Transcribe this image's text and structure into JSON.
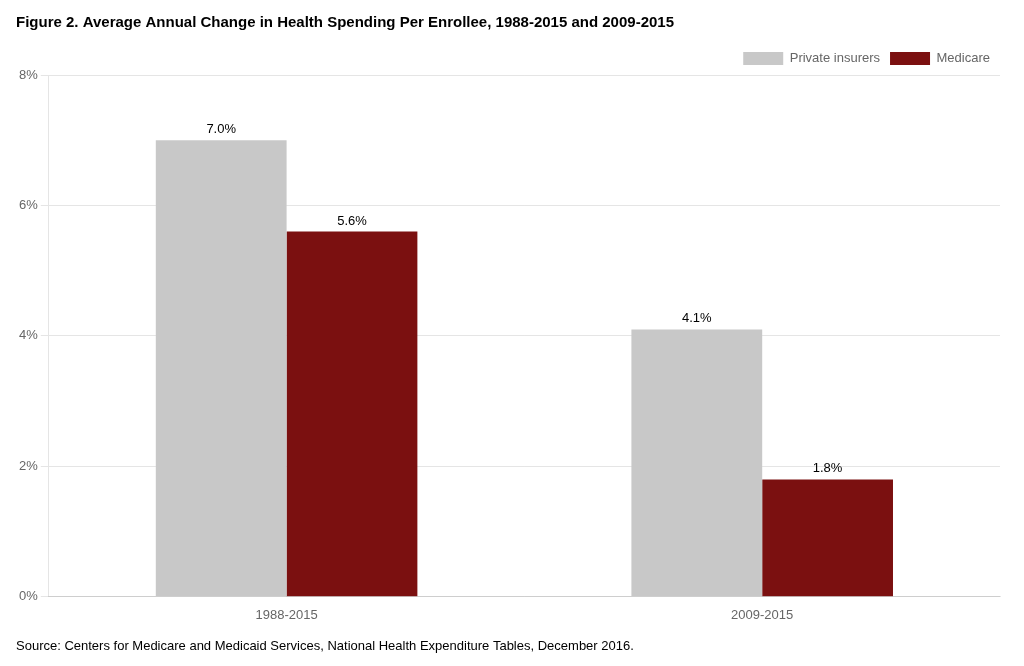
{
  "chart_data": {
    "type": "bar",
    "title": "Figure 2. Average Annual Change in Health Spending Per Enrollee, 1988-2015 and 2009-2015",
    "annotations": [
      "Source: Centers for Medicare and Medicaid Services, National Health Expenditure Tables, December 2016."
    ],
    "categories": [
      "1988-2015",
      "2009-2015"
    ],
    "series": [
      {
        "name": "Private insurers",
        "color": "#c8c8c8",
        "values": [
          7.0,
          4.1
        ],
        "value_labels": [
          "7.0%",
          "4.1%"
        ]
      },
      {
        "name": "Medicare",
        "color": "#7b1010",
        "values": [
          5.6,
          1.8
        ],
        "value_labels": [
          "5.6%",
          "1.8%"
        ]
      }
    ],
    "ylim": [
      0,
      8
    ],
    "yticks": [
      {
        "value": 0,
        "label": "0%"
      },
      {
        "value": 2,
        "label": "2%"
      },
      {
        "value": 4,
        "label": "4%"
      },
      {
        "value": 6,
        "label": "6%"
      },
      {
        "value": 8,
        "label": "8%"
      }
    ],
    "grid": true,
    "legend": "top-right",
    "data_labels": true
  }
}
